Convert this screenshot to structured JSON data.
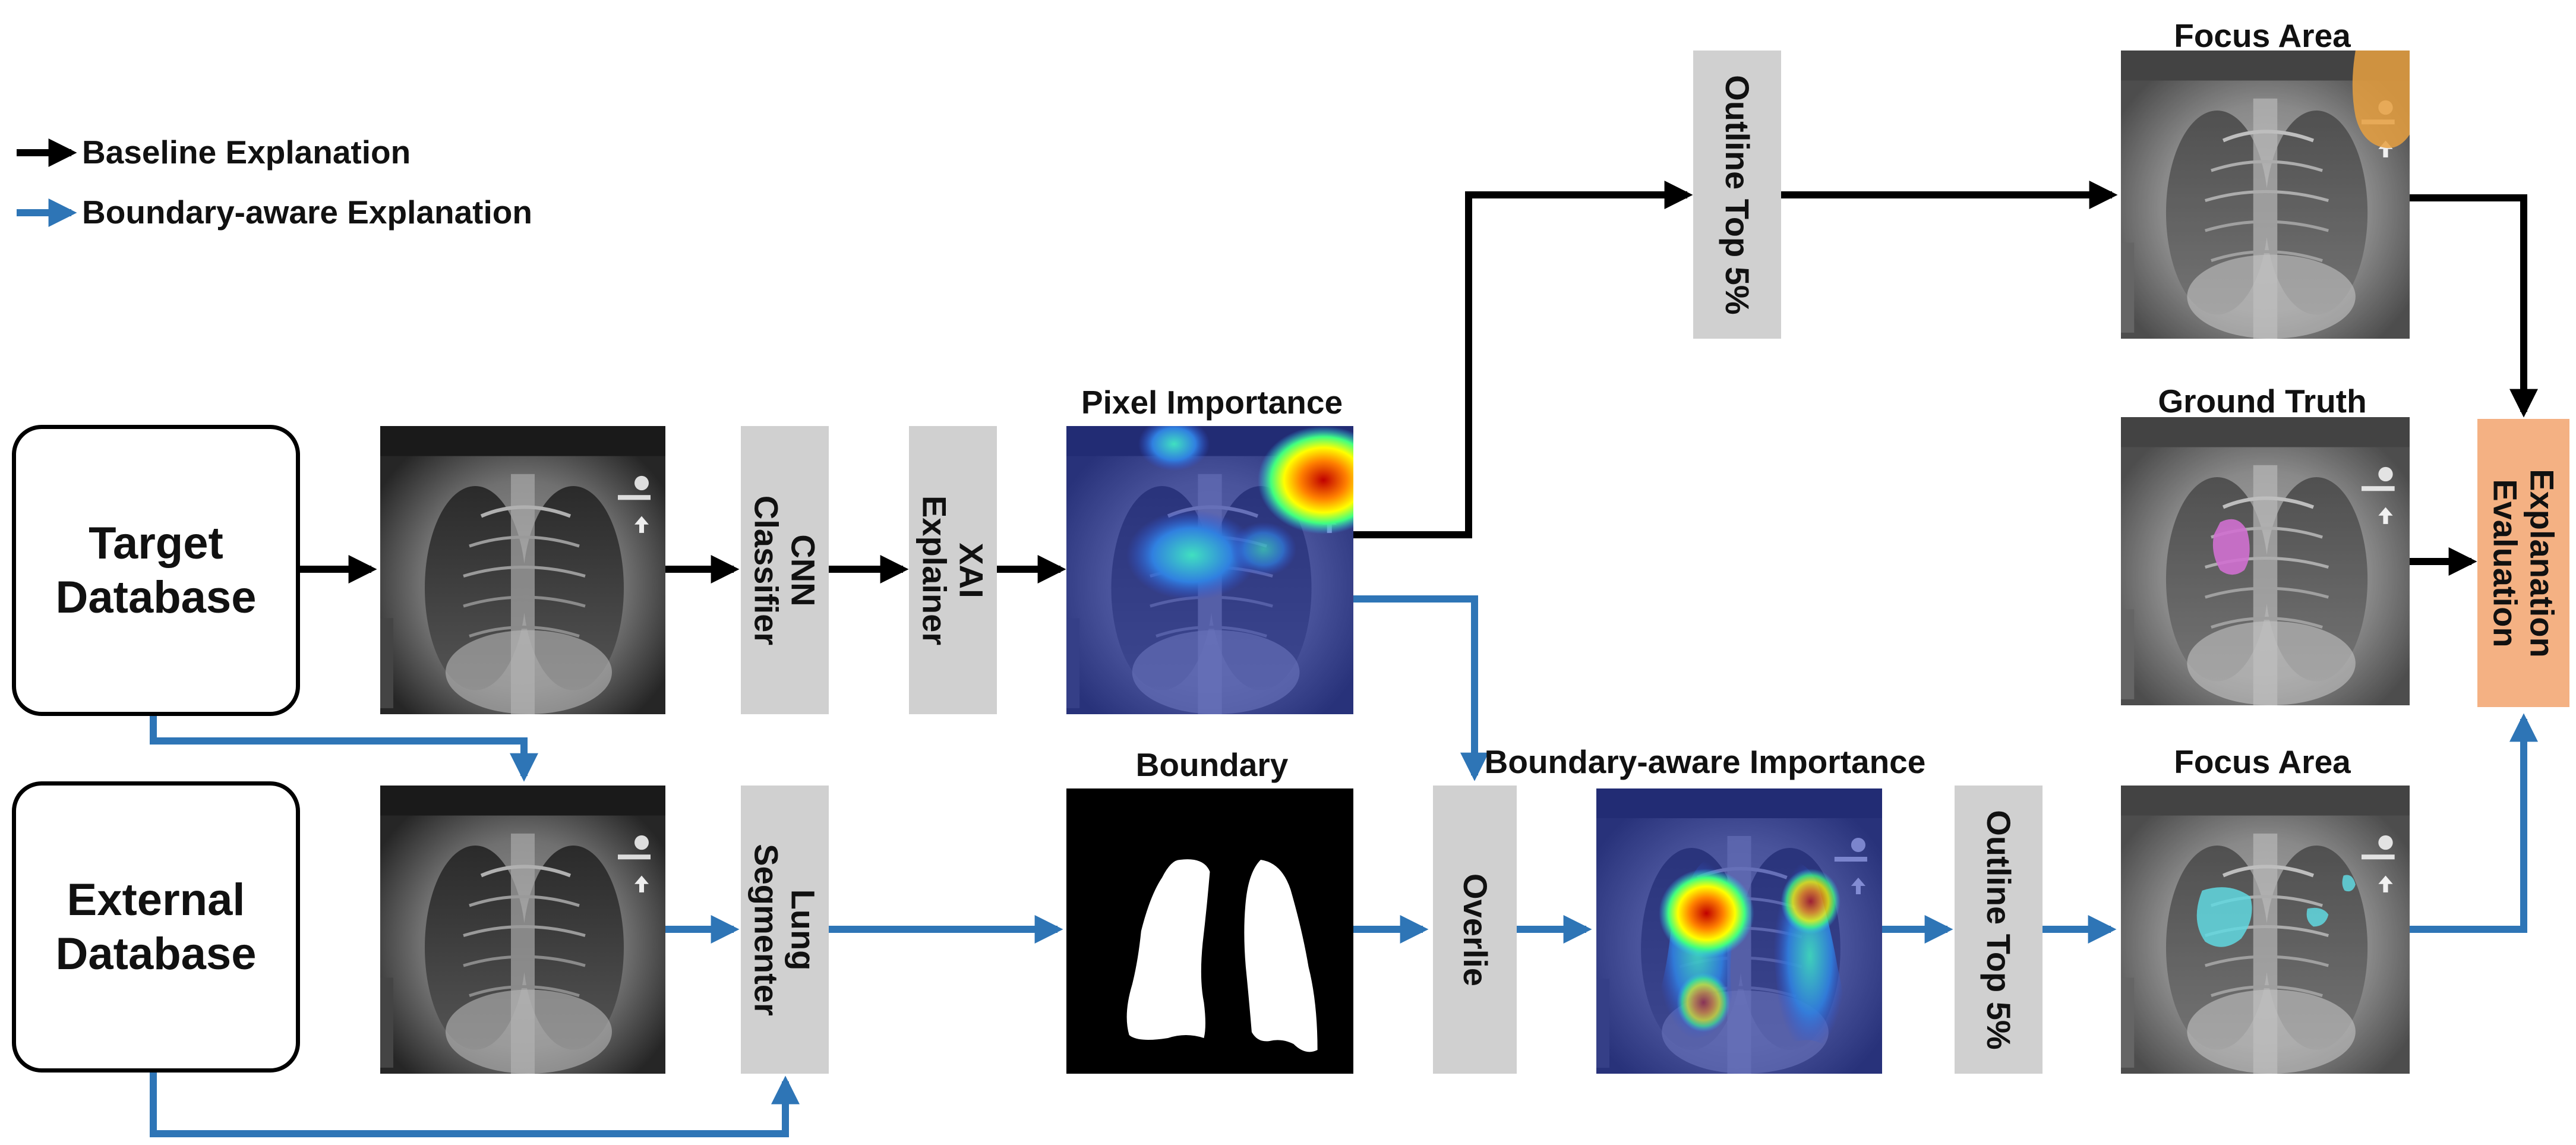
{
  "legend": {
    "baseline": "Baseline Explanation",
    "boundary": "Boundary-aware Explanation",
    "baseline_color": "#000000",
    "boundary_color": "#2e75b6"
  },
  "databases": {
    "target_line1": "Target",
    "target_line2": "Database",
    "external_line1": "External",
    "external_line2": "Database"
  },
  "steps": {
    "cnn_line1": "CNN",
    "cnn_line2": "Classifier",
    "xai_line1": "XAI",
    "xai_line2": "Explainer",
    "lung_line1": "Lung",
    "lung_line2": "Segmenter",
    "outline_top": "Outline Top 5%",
    "overlie": "Overlie",
    "outline_bottom": "Outline Top 5%",
    "eval_line1": "Explanation",
    "eval_line2": "Evaluation"
  },
  "labels": {
    "pixel_importance": "Pixel Importance",
    "boundary": "Boundary",
    "boundary_aware_importance": "Boundary-aware Importance",
    "focus_area_top": "Focus Area",
    "ground_truth": "Ground Truth",
    "focus_area_bottom": "Focus Area"
  },
  "colors": {
    "process_box": "#d0d0d0",
    "evaluation_box": "#f4b183",
    "focus_baseline": "#e8a040",
    "ground_truth": "#d070d0",
    "focus_boundary": "#60d8e0"
  }
}
